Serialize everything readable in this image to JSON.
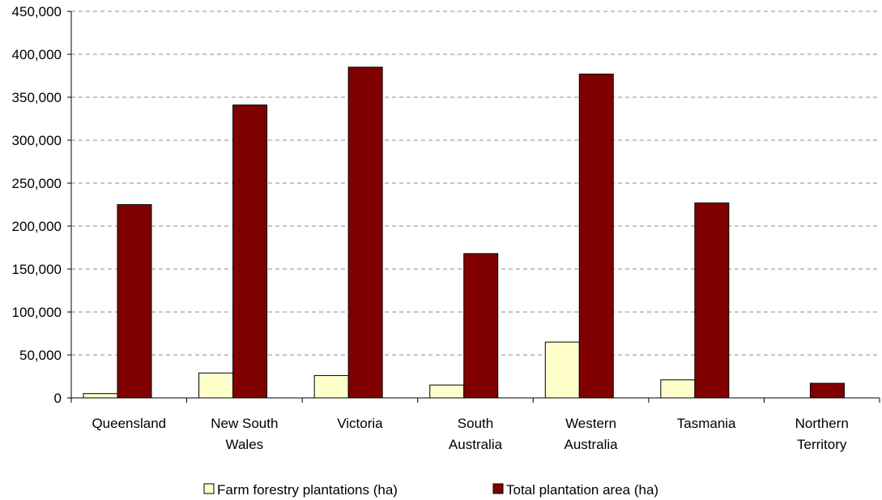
{
  "chart_data": {
    "type": "bar",
    "categories": [
      [
        "Queensland"
      ],
      [
        "New South",
        "Wales"
      ],
      [
        "Victoria"
      ],
      [
        "South",
        "Australia"
      ],
      [
        "Western",
        "Australia"
      ],
      [
        "Tasmania"
      ],
      [
        "Northern",
        "Territory"
      ]
    ],
    "series": [
      {
        "name": "Farm forestry plantations (ha)",
        "color": "#ffffcc",
        "values": [
          5000,
          29000,
          26000,
          15000,
          65000,
          21000,
          0
        ]
      },
      {
        "name": "Total plantation area (ha)",
        "color": "#800000",
        "values": [
          225000,
          341000,
          385000,
          168000,
          377000,
          227000,
          17000
        ]
      }
    ],
    "ylim": [
      0,
      450000
    ],
    "yticks": [
      "0",
      "50,000",
      "100,000",
      "150,000",
      "200,000",
      "250,000",
      "300,000",
      "350,000",
      "400,000",
      "450,000"
    ],
    "ytick_step": 50000,
    "grid": true,
    "legend_position": "bottom"
  }
}
